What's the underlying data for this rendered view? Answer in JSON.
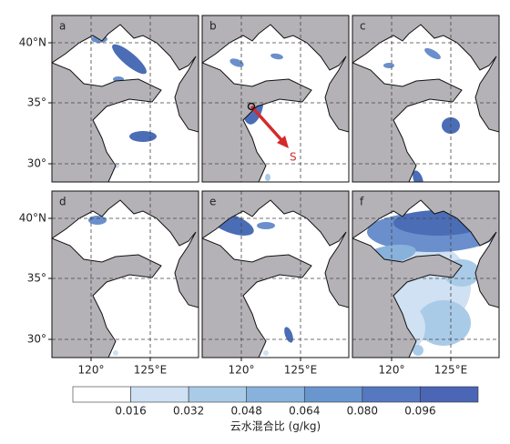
{
  "panels": [
    {
      "label": "a"
    },
    {
      "label": "b"
    },
    {
      "label": "c"
    },
    {
      "label": "d"
    },
    {
      "label": "e"
    },
    {
      "label": "f"
    }
  ],
  "lat_labels": [
    "40°N",
    "35°",
    "30°"
  ],
  "lon_labels": [
    "120°",
    "125°E"
  ],
  "annotation": "S",
  "colorbar": {
    "tick_labels": [
      "0.016",
      "0.032",
      "0.048",
      "0.064",
      "0.080",
      "0.096"
    ],
    "title": "云水混合比 (g/kg)"
  }
}
